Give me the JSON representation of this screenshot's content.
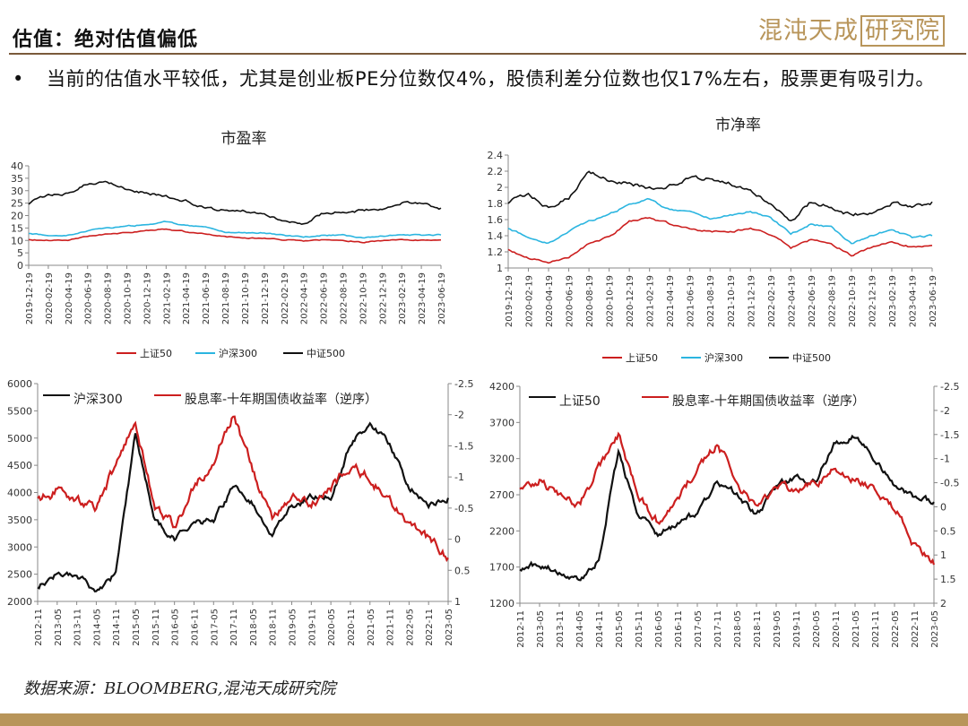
{
  "header": {
    "title": "估值：绝对估值偏低",
    "logo_text": "混沌天成",
    "logo_box_text": "研究院"
  },
  "bullet": {
    "symbol": "•",
    "text": "当前的估值水平较低，尤其是创业板PE分位数仅4%，股债利差分位数也仅17%左右，股票更有吸引力。"
  },
  "source": "数据来源：BLOOMBERG,混沌天成研究院",
  "colors": {
    "black": "#111111",
    "red": "#cc1f1f",
    "cyan": "#2bb5e0",
    "gold": "#b8955a"
  },
  "chart_data": [
    {
      "id": "pe",
      "type": "line",
      "title": "市盈率",
      "x": [
        "2019-12-19",
        "2020-02-19",
        "2020-04-19",
        "2020-06-19",
        "2020-08-19",
        "2020-10-19",
        "2020-12-19",
        "2021-02-19",
        "2021-04-19",
        "2021-06-19",
        "2021-08-19",
        "2021-10-19",
        "2021-12-19",
        "2022-02-19",
        "2022-04-19",
        "2022-06-19",
        "2022-08-19",
        "2022-10-19",
        "2022-12-19",
        "2023-02-19",
        "2023-04-19",
        "2023-06-19"
      ],
      "ylim": [
        0,
        40
      ],
      "yticks": [
        0,
        5,
        10,
        15,
        20,
        25,
        30,
        35,
        40
      ],
      "grid": false,
      "legend_position": "bottom",
      "series": [
        {
          "name": "上证50",
          "color": "#cc1f1f",
          "values": [
            10.5,
            10.0,
            10.3,
            11.5,
            12.5,
            13.0,
            14.0,
            14.5,
            13.5,
            12.5,
            11.5,
            11.0,
            11.0,
            10.3,
            9.8,
            10.2,
            10.0,
            9.3,
            9.8,
            10.3,
            10.1,
            10.2
          ]
        },
        {
          "name": "沪深300",
          "color": "#2bb5e0",
          "values": [
            13.0,
            12.0,
            12.3,
            13.8,
            15.0,
            15.5,
            16.5,
            17.5,
            16.0,
            15.0,
            13.5,
            13.0,
            13.0,
            12.0,
            11.3,
            12.2,
            12.0,
            11.0,
            11.7,
            12.4,
            12.1,
            12.2
          ]
        },
        {
          "name": "中证500",
          "color": "#111111",
          "values": [
            25,
            28,
            29,
            33,
            34,
            31,
            29,
            28,
            26,
            23,
            22,
            22,
            21,
            18,
            17,
            21,
            22,
            22,
            23,
            25,
            25,
            23
          ]
        }
      ]
    },
    {
      "id": "pb",
      "type": "line",
      "title": "市净率",
      "x": [
        "2019-12-19",
        "2020-02-19",
        "2020-04-19",
        "2020-06-19",
        "2020-08-19",
        "2020-10-19",
        "2020-12-19",
        "2021-02-19",
        "2021-04-19",
        "2021-06-19",
        "2021-08-19",
        "2021-10-19",
        "2021-12-19",
        "2022-02-19",
        "2022-04-19",
        "2022-06-19",
        "2022-08-19",
        "2022-10-19",
        "2022-12-19",
        "2023-02-19",
        "2023-04-19",
        "2023-06-19"
      ],
      "ylim": [
        1.0,
        2.4
      ],
      "yticks": [
        1.0,
        1.2,
        1.4,
        1.6,
        1.8,
        2.0,
        2.2,
        2.4
      ],
      "grid": false,
      "legend_position": "bottom",
      "series": [
        {
          "name": "上证50",
          "color": "#cc1f1f",
          "values": [
            1.24,
            1.12,
            1.08,
            1.12,
            1.3,
            1.38,
            1.58,
            1.62,
            1.55,
            1.48,
            1.45,
            1.45,
            1.5,
            1.42,
            1.25,
            1.35,
            1.3,
            1.16,
            1.25,
            1.32,
            1.26,
            1.28
          ]
        },
        {
          "name": "沪深300",
          "color": "#2bb5e0",
          "values": [
            1.5,
            1.38,
            1.32,
            1.45,
            1.58,
            1.65,
            1.8,
            1.85,
            1.72,
            1.68,
            1.62,
            1.65,
            1.7,
            1.62,
            1.42,
            1.55,
            1.5,
            1.3,
            1.4,
            1.48,
            1.38,
            1.4
          ]
        },
        {
          "name": "中证500",
          "color": "#111111",
          "values": [
            1.82,
            1.9,
            1.75,
            1.88,
            2.22,
            2.1,
            2.05,
            2.0,
            2.02,
            2.12,
            2.1,
            2.05,
            1.98,
            1.8,
            1.6,
            1.82,
            1.78,
            1.65,
            1.7,
            1.8,
            1.76,
            1.82
          ]
        }
      ]
    },
    {
      "id": "hs300",
      "type": "line",
      "x": [
        "2012-11",
        "2013-05",
        "2013-11",
        "2014-05",
        "2014-11",
        "2015-05",
        "2015-11",
        "2016-05",
        "2016-11",
        "2017-05",
        "2017-11",
        "2018-05",
        "2018-11",
        "2019-05",
        "2019-11",
        "2020-05",
        "2020-11",
        "2021-05",
        "2021-11",
        "2022-05",
        "2022-11",
        "2023-05"
      ],
      "ylim": [
        2000,
        6000
      ],
      "yticks": [
        2000,
        2500,
        3000,
        3500,
        4000,
        4500,
        5000,
        5500,
        6000
      ],
      "y2lim": [
        1,
        -2.5
      ],
      "y2ticks": [
        1,
        0.5,
        0,
        -0.5,
        -1,
        -1.5,
        -2,
        -2.5
      ],
      "y2_inverted": true,
      "grid": false,
      "legend_position": "top",
      "series": [
        {
          "name": "沪深300",
          "color": "#111111",
          "axis": "left",
          "values": [
            2300,
            2500,
            2450,
            2200,
            2500,
            5100,
            3500,
            3150,
            3400,
            3500,
            4100,
            3800,
            3200,
            3750,
            3900,
            3900,
            4900,
            5300,
            4900,
            4100,
            3800,
            3900
          ]
        },
        {
          "name": "股息率-十年期国债收益率（逆序）",
          "color": "#cc1f1f",
          "axis": "right",
          "values": [
            -0.6,
            -0.8,
            -0.6,
            -0.5,
            -1.2,
            -1.9,
            -0.5,
            -0.2,
            -0.8,
            -1.3,
            -2.0,
            -1.1,
            -0.3,
            -0.7,
            -0.6,
            -0.8,
            -1.2,
            -1.0,
            -0.6,
            -0.2,
            0.0,
            0.3
          ]
        }
      ]
    },
    {
      "id": "sz50",
      "type": "line",
      "x": [
        "2012-11",
        "2013-05",
        "2013-11",
        "2014-05",
        "2014-11",
        "2015-05",
        "2015-11",
        "2016-05",
        "2016-11",
        "2017-05",
        "2017-11",
        "2018-05",
        "2018-11",
        "2019-05",
        "2019-11",
        "2020-05",
        "2020-11",
        "2021-05",
        "2021-11",
        "2022-05",
        "2022-11",
        "2023-05"
      ],
      "ylim": [
        1200,
        4200
      ],
      "yticks": [
        1200,
        1700,
        2200,
        2700,
        3200,
        3700,
        4200
      ],
      "y2lim": [
        2,
        -2.5
      ],
      "y2ticks": [
        2,
        1.5,
        1,
        0.5,
        0,
        -0.5,
        -1,
        -1.5,
        -2,
        -2.5
      ],
      "y2_inverted": true,
      "grid": false,
      "legend_position": "top",
      "series": [
        {
          "name": "上证50",
          "color": "#111111",
          "axis": "left",
          "values": [
            1700,
            1750,
            1650,
            1500,
            1800,
            3300,
            2400,
            2150,
            2300,
            2450,
            2900,
            2700,
            2400,
            2800,
            2950,
            2900,
            3400,
            3500,
            3200,
            2800,
            2650,
            2600
          ]
        },
        {
          "name": "股息率-十年期国债收益率（逆序）",
          "color": "#cc1f1f",
          "axis": "right",
          "values": [
            -0.3,
            -0.6,
            -0.2,
            0.0,
            -0.8,
            -1.5,
            -0.2,
            0.3,
            -0.2,
            -0.8,
            -1.3,
            -0.6,
            0.1,
            -0.4,
            -0.3,
            -0.5,
            -0.8,
            -0.6,
            -0.3,
            0.0,
            0.8,
            1.2
          ]
        }
      ]
    }
  ]
}
